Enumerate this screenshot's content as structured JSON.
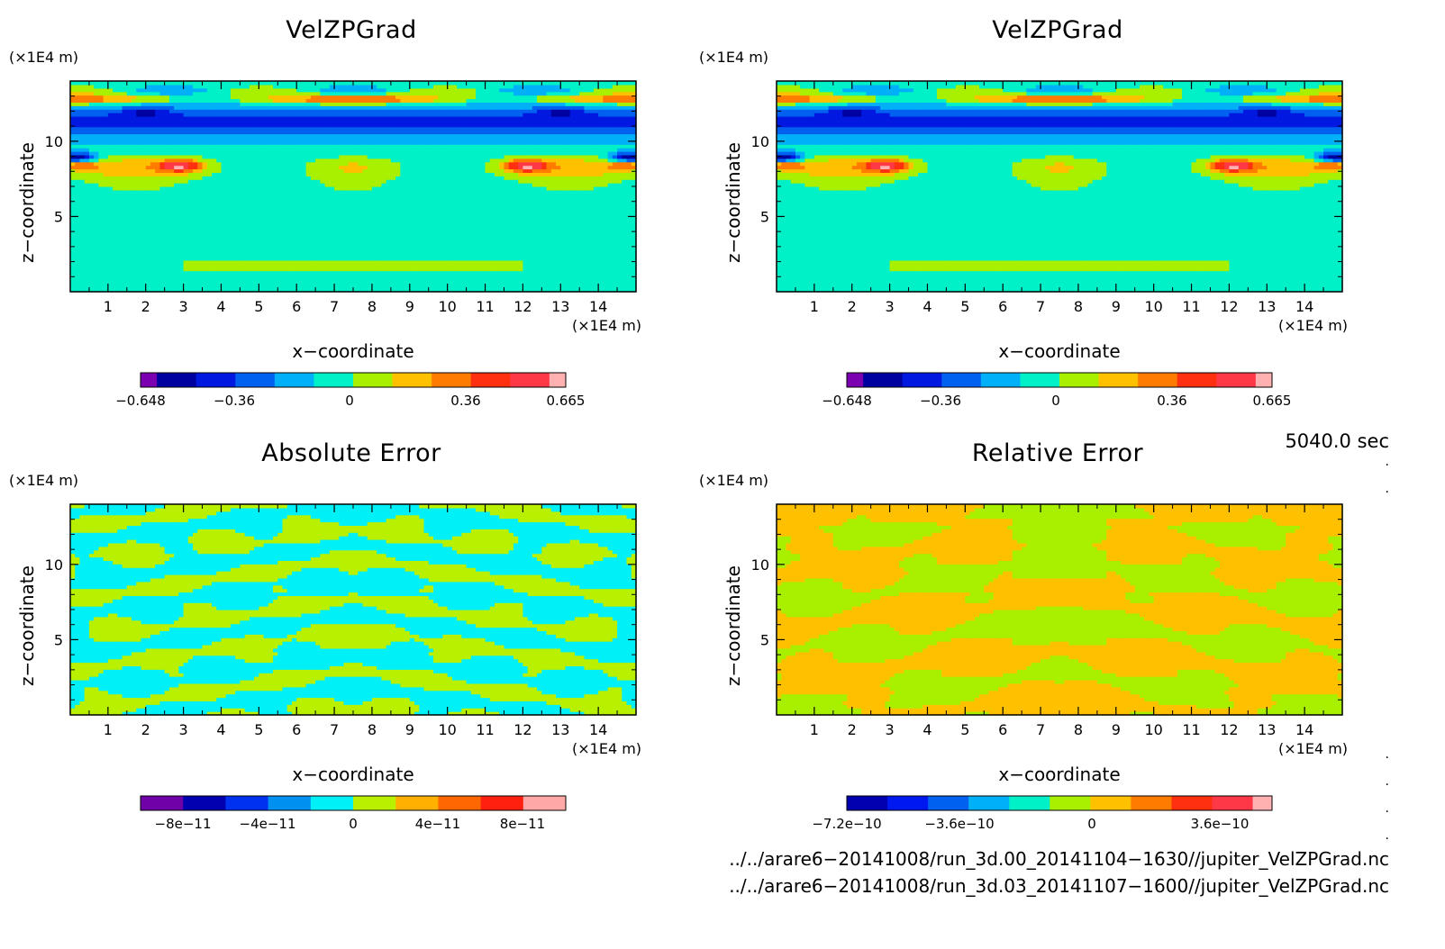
{
  "chart_data": [
    {
      "type": "heatmap",
      "title": "VelZPGrad",
      "xlabel": "x−coordinate",
      "ylabel": "z−coordinate",
      "x_unit": "(×1E4 m)",
      "z_unit": "(×1E4 m)",
      "xlim": [
        0,
        15
      ],
      "ylim": [
        0,
        14
      ],
      "x_ticks": [
        "1",
        "2",
        "3",
        "4",
        "5",
        "6",
        "7",
        "8",
        "9",
        "10",
        "11",
        "12",
        "13",
        "14"
      ],
      "y_ticks": [
        "5",
        "10"
      ],
      "colorbar_labels": [
        "−0.648",
        "−0.36",
        "0",
        "0.36",
        "0.665"
      ],
      "colorbar_colors": [
        "#7b00b0",
        "#0000a0",
        "#0018e0",
        "#0060f0",
        "#00b0f8",
        "#00f0c8",
        "#a8f000",
        "#ffc000",
        "#ff7c00",
        "#ff3010",
        "#ff3848",
        "#ffb0b0"
      ],
      "field": "velz"
    },
    {
      "type": "heatmap",
      "title": "VelZPGrad",
      "xlabel": "x−coordinate",
      "ylabel": "z−coordinate",
      "x_unit": "(×1E4 m)",
      "z_unit": "(×1E4 m)",
      "xlim": [
        0,
        15
      ],
      "ylim": [
        0,
        14
      ],
      "x_ticks": [
        "1",
        "2",
        "3",
        "4",
        "5",
        "6",
        "7",
        "8",
        "9",
        "10",
        "11",
        "12",
        "13",
        "14"
      ],
      "y_ticks": [
        "5",
        "10"
      ],
      "colorbar_labels": [
        "−0.648",
        "−0.36",
        "0",
        "0.36",
        "0.665"
      ],
      "colorbar_colors": [
        "#7b00b0",
        "#0000a0",
        "#0018e0",
        "#0060f0",
        "#00b0f8",
        "#00f0c8",
        "#a8f000",
        "#ffc000",
        "#ff7c00",
        "#ff3010",
        "#ff3848",
        "#ffb0b0"
      ],
      "field": "velz"
    },
    {
      "type": "heatmap",
      "title": "Absolute Error",
      "xlabel": "x−coordinate",
      "ylabel": "z−coordinate",
      "x_unit": "(×1E4 m)",
      "z_unit": "(×1E4 m)",
      "xlim": [
        0,
        15
      ],
      "ylim": [
        0,
        14
      ],
      "x_ticks": [
        "1",
        "2",
        "3",
        "4",
        "5",
        "6",
        "7",
        "8",
        "9",
        "10",
        "11",
        "12",
        "13",
        "14"
      ],
      "y_ticks": [
        "5",
        "10"
      ],
      "colorbar_labels": [
        "−8e−11",
        "−4e−11",
        "0",
        "4e−11",
        "8e−11"
      ],
      "colorbar_colors": [
        "#7000a8",
        "#0000b0",
        "#0030f0",
        "#0090f0",
        "#00f0f8",
        "#b8f000",
        "#ffb000",
        "#ff6800",
        "#ff2010",
        "#ffa8a8"
      ],
      "field": "abs"
    },
    {
      "type": "heatmap",
      "title": "Relative Error",
      "xlabel": "x−coordinate",
      "ylabel": "z−coordinate",
      "x_unit": "(×1E4 m)",
      "z_unit": "(×1E4 m)",
      "xlim": [
        0,
        15
      ],
      "ylim": [
        0,
        14
      ],
      "x_ticks": [
        "1",
        "2",
        "3",
        "4",
        "5",
        "6",
        "7",
        "8",
        "9",
        "10",
        "11",
        "12",
        "13",
        "14"
      ],
      "y_ticks": [
        "5",
        "10"
      ],
      "colorbar_labels": [
        "−7.2e−10",
        "−3.6e−10",
        "0",
        "3.6e−10"
      ],
      "colorbar_colors": [
        "#0000b0",
        "#0018f0",
        "#0060f0",
        "#00b0f8",
        "#00f0c8",
        "#a8f000",
        "#ffc000",
        "#ff7c00",
        "#ff3010",
        "#ff3848",
        "#ffb0b0"
      ],
      "field": "rel"
    }
  ],
  "time_label": "5040.0 sec",
  "file_paths": [
    "../../arare6−20141008/run_3d.00_20141104−1630//jupiter_VelZPGrad.nc",
    "../../arare6−20141008/run_3d.03_20141107−1600//jupiter_VelZPGrad.nc"
  ]
}
